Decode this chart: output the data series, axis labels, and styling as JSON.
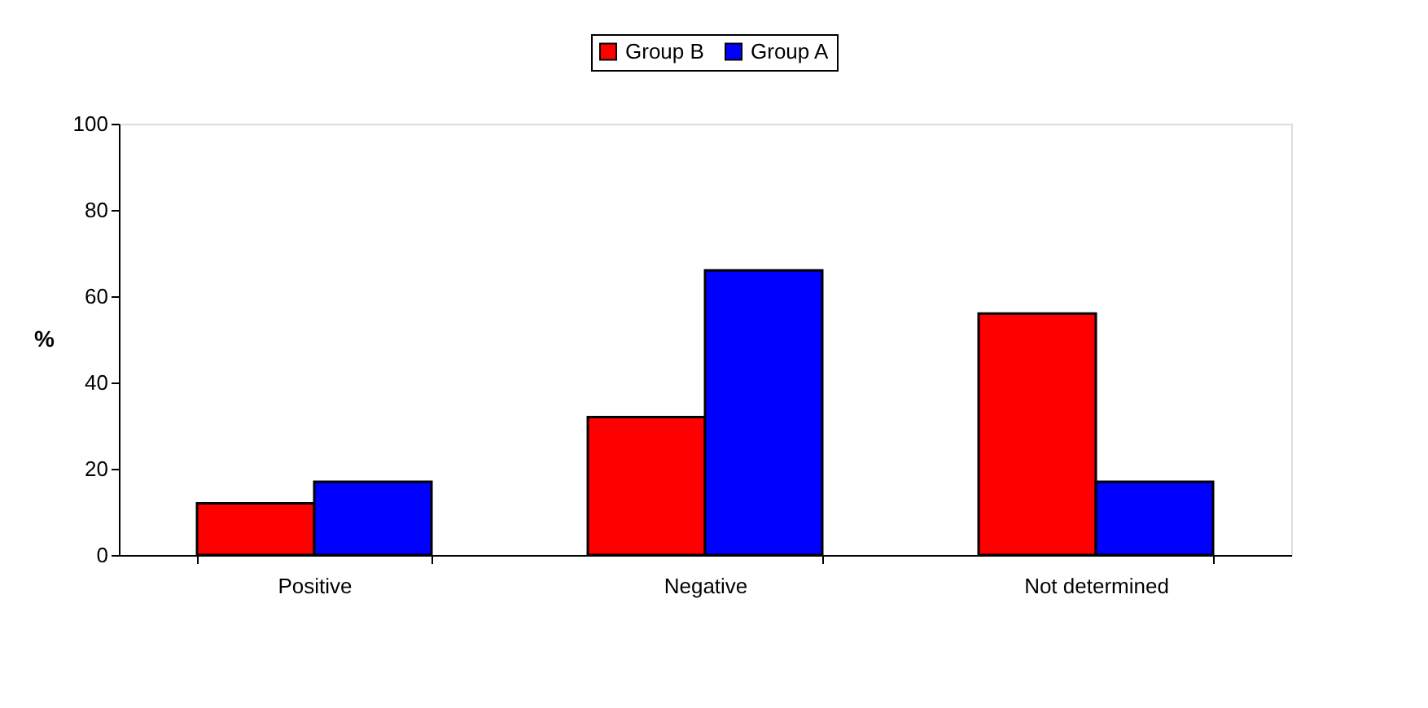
{
  "chart_data": {
    "type": "bar",
    "ylabel": "%",
    "categories": [
      "Positive",
      "Negative",
      "Not determined"
    ],
    "series": [
      {
        "name": "Group B",
        "color": "#ff0000",
        "values": [
          12,
          32,
          56
        ]
      },
      {
        "name": "Group A",
        "color": "#0000ff",
        "values": [
          17,
          66,
          17
        ]
      }
    ],
    "ylim": [
      0,
      100
    ],
    "yticks": [
      0,
      20,
      40,
      60,
      80,
      100
    ],
    "grid": false,
    "legend": "top"
  }
}
